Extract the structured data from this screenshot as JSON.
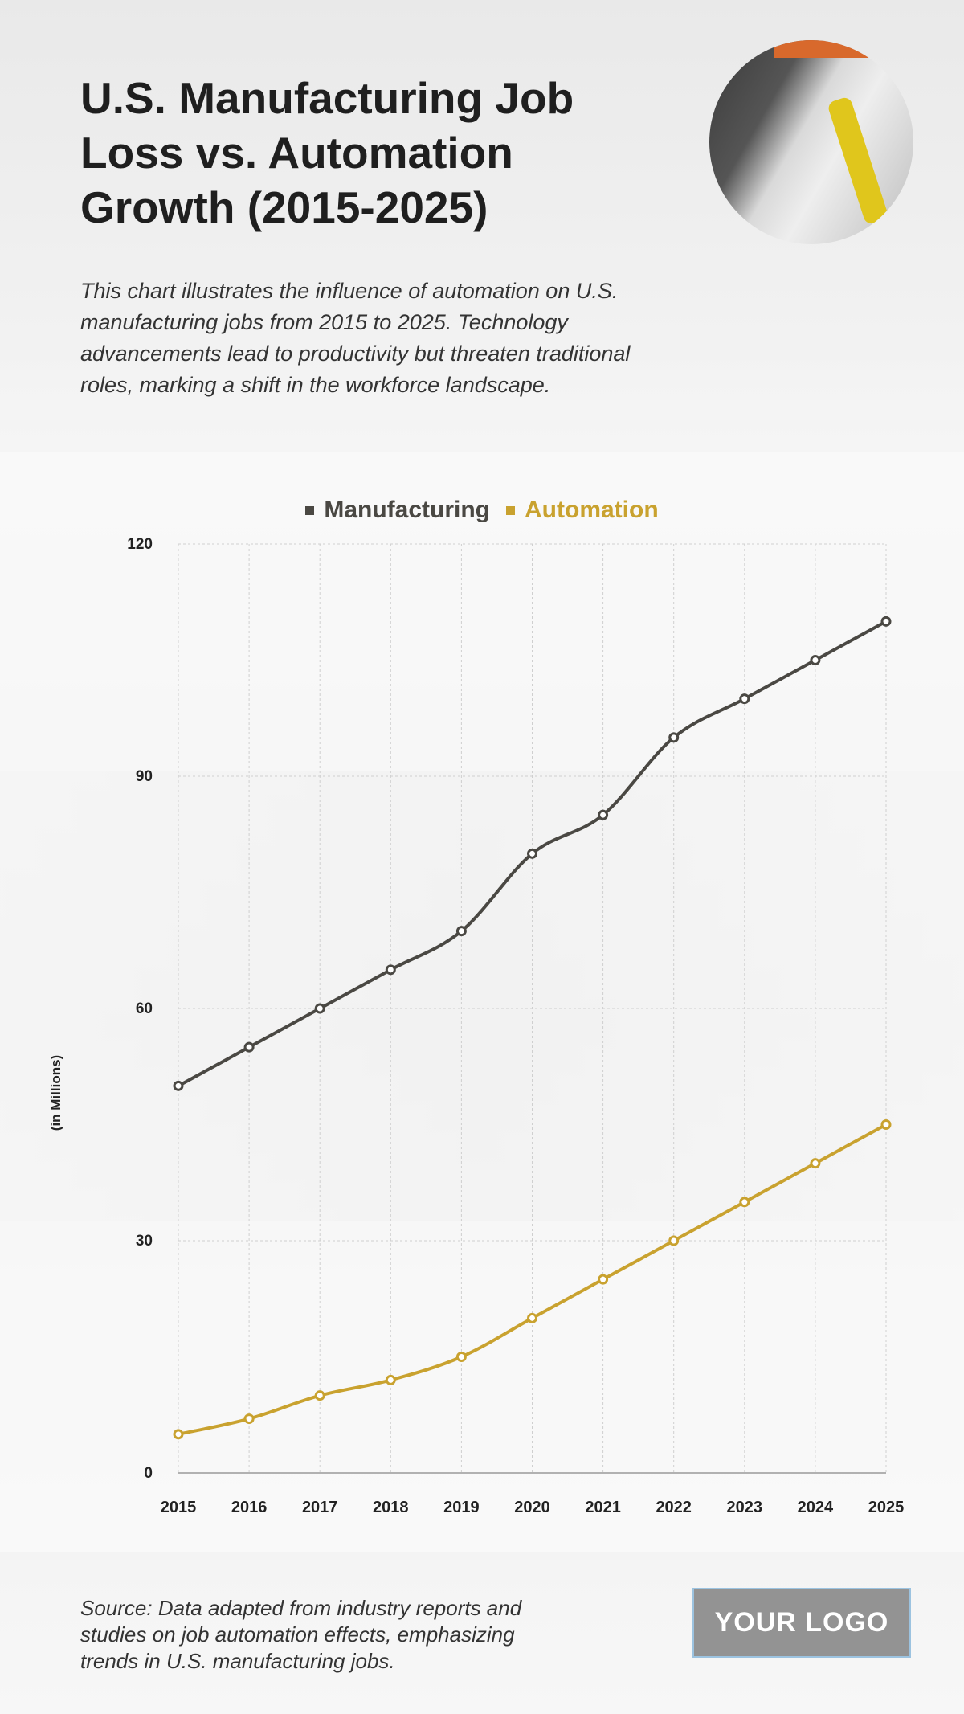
{
  "header": {
    "title": "U.S. Manufacturing Job Loss vs. Automation Growth (2015-2025)",
    "description": "This chart illustrates the influence of automation on U.S. manufacturing jobs from 2015 to 2025. Technology advancements lead to productivity but threaten traditional roles, marking a shift in the workforce landscape."
  },
  "footer": {
    "source": "Source: Data adapted from industry reports and studies on job automation effects, emphasizing trends in U.S. manufacturing jobs.",
    "logo": "YOUR LOGO"
  },
  "chart_data": {
    "type": "line",
    "title": "",
    "xlabel": "",
    "ylabel": "(in Millions)",
    "categories": [
      "2015",
      "2016",
      "2017",
      "2018",
      "2019",
      "2020",
      "2021",
      "2022",
      "2023",
      "2024",
      "2025"
    ],
    "ylim": [
      0,
      120
    ],
    "yticks": [
      "0",
      "30",
      "60",
      "90",
      "120"
    ],
    "grid": true,
    "legend_position": "top-center",
    "series": [
      {
        "name": "Manufacturing",
        "color": "#4a4843",
        "values": [
          50,
          55,
          60,
          65,
          70,
          80,
          85,
          95,
          100,
          105,
          110
        ]
      },
      {
        "name": "Automation",
        "color": "#c9a22f",
        "values": [
          5,
          7,
          10,
          12,
          15,
          20,
          25,
          30,
          35,
          40,
          45
        ]
      }
    ]
  }
}
